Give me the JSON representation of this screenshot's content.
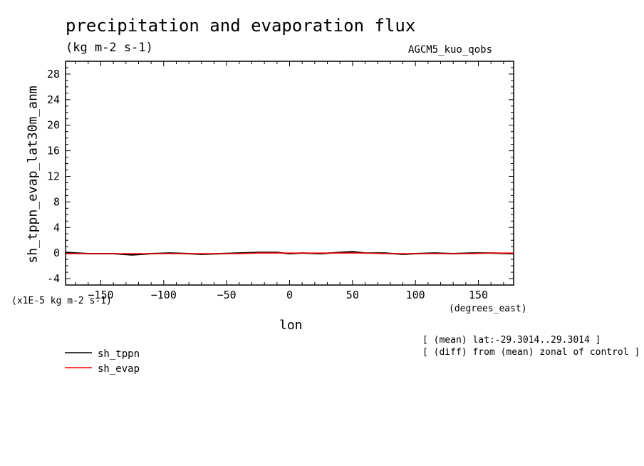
{
  "chart_data": {
    "type": "line",
    "title": "precipitation and evaporation flux",
    "units": "(kg m-2 s-1)",
    "experiment": "AGCM5_kuo_qobs",
    "ylabel": "sh_tppn_evap_lat30m_anm",
    "yscale_label": "(x1E-5 kg m-2 s-1)",
    "xlabel": "lon",
    "xunit_label": "(degrees_east)",
    "notes": [
      "[ (mean) lat:-29.3014..29.3014 ]",
      "[ (diff) from (mean) zonal of control ]"
    ],
    "xlim": [
      -178,
      178
    ],
    "ylim": [
      -5,
      30
    ],
    "xticks": [
      -150,
      -100,
      -50,
      0,
      50,
      100,
      150
    ],
    "yticks": [
      -4,
      0,
      4,
      8,
      12,
      16,
      20,
      24,
      28
    ],
    "x": [
      -178,
      -160,
      -140,
      -125,
      -110,
      -95,
      -80,
      -70,
      -55,
      -40,
      -25,
      -10,
      0,
      10,
      25,
      40,
      50,
      60,
      75,
      90,
      100,
      115,
      130,
      145,
      160,
      178
    ],
    "series": [
      {
        "name": "sh_tppn",
        "color": "#000000",
        "values": [
          0.1,
          -0.1,
          -0.1,
          -0.3,
          -0.1,
          0.0,
          -0.1,
          -0.2,
          -0.1,
          0.0,
          0.1,
          0.1,
          -0.1,
          0.0,
          -0.1,
          0.1,
          0.2,
          0.0,
          0.0,
          -0.2,
          -0.1,
          0.0,
          -0.1,
          0.0,
          0.0,
          -0.1
        ]
      },
      {
        "name": "sh_evap",
        "color": "#ff0000",
        "values": [
          -0.1,
          -0.1,
          -0.1,
          -0.1,
          -0.1,
          -0.1,
          -0.1,
          -0.1,
          -0.1,
          -0.1,
          0.0,
          0.0,
          0.0,
          0.0,
          0.0,
          0.0,
          0.0,
          0.0,
          -0.1,
          -0.1,
          -0.1,
          -0.1,
          -0.1,
          -0.1,
          0.0,
          0.0
        ]
      }
    ]
  }
}
